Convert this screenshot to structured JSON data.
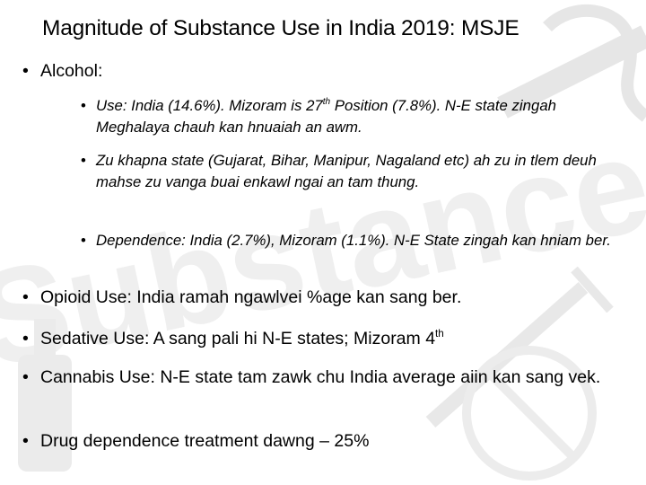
{
  "slide": {
    "title": "Magnitude of Substance Use in India 2019: MSJE",
    "bullets": [
      {
        "text": "Alcohol:"
      },
      {
        "text": "Opioid Use: India ramah ngawlvei %age kan sang ber."
      },
      {
        "before": "Sedative Use: A sang pali hi N-E states; Mizoram 4",
        "sup": "th",
        "after": ""
      },
      {
        "text": "Cannabis Use: N-E state tam zawk chu India average aiin kan sang vek."
      },
      {
        "text": "Drug dependence treatment dawng – 25%"
      }
    ],
    "alcohol_subbullets": [
      {
        "before": "Use: India (14.6%). Mizoram is 27",
        "sup": "th",
        "after": " Position (7.8%). N-E state zingah Meghalaya chauh kan hnuaiah an awm."
      },
      {
        "text": "Zu khapna state (Gujarat, Bihar, Manipur, Nagaland etc) ah zu in tlem deuh mahse zu vanga buai enkawl ngai an tam thung."
      },
      {
        "text": "Dependence: India (2.7%), Mizoram (1.1%). N-E State zingah kan hniam ber."
      }
    ],
    "bullet_glyph": "•",
    "background_watermark_text": "Substance Ab",
    "watermark_color": "#ececec"
  }
}
